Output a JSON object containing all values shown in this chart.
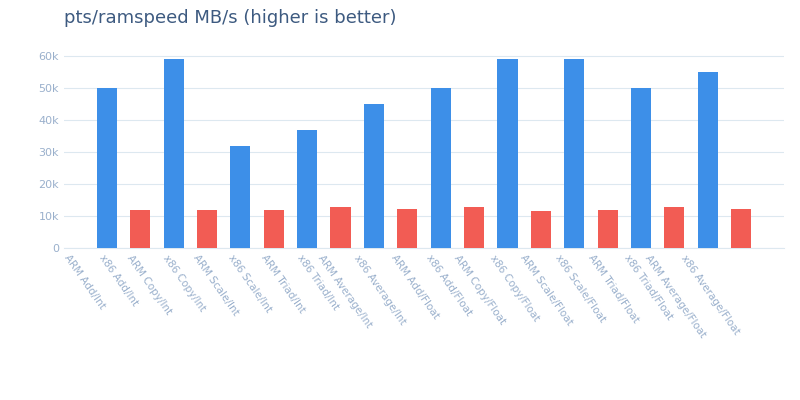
{
  "title": "pts/ramspeed MB/s (higher is better)",
  "categories": [
    "ARM Add/Int",
    "x86 Add/Int",
    "ARM Copy/Int",
    "x86 Copy/Int",
    "ARM Scale/Int",
    "x86 Scale/Int",
    "ARM Triad/Int",
    "x86 Triad/Int",
    "ARM Average/Int",
    "x86 Average/Int",
    "ARM Add/Float",
    "x86 Add/Float",
    "ARM Copy/Float",
    "x86 Copy/Float",
    "ARM Scale/Float",
    "x86 Scale/Float",
    "ARM Triad/Float",
    "x86 Triad/Float",
    "ARM Average/Float",
    "x86 Average/Float"
  ],
  "values": [
    50000,
    11800,
    59000,
    11800,
    32000,
    11900,
    37000,
    12700,
    45000,
    12300,
    50000,
    12900,
    59000,
    11600,
    59000,
    11800,
    50000,
    12900,
    55000,
    12100
  ],
  "bar_colors": [
    "#3d8fe8",
    "#f25c54",
    "#3d8fe8",
    "#f25c54",
    "#3d8fe8",
    "#f25c54",
    "#3d8fe8",
    "#f25c54",
    "#3d8fe8",
    "#f25c54",
    "#3d8fe8",
    "#f25c54",
    "#3d8fe8",
    "#f25c54",
    "#3d8fe8",
    "#f25c54",
    "#3d8fe8",
    "#f25c54",
    "#3d8fe8",
    "#f25c54"
  ],
  "ylim": [
    0,
    65000
  ],
  "yticks": [
    0,
    10000,
    20000,
    30000,
    40000,
    50000,
    60000
  ],
  "ytick_labels": [
    "0",
    "10k",
    "20k",
    "30k",
    "40k",
    "50k",
    "60k"
  ],
  "title_color": "#3d5a80",
  "tick_color": "#9ab0cc",
  "grid_color": "#dde8f0",
  "background_color": "#ffffff",
  "title_fontsize": 13,
  "tick_fontsize": 8,
  "xlabel_fontsize": 7.5,
  "label_rotation": -55,
  "bar_width": 0.6
}
